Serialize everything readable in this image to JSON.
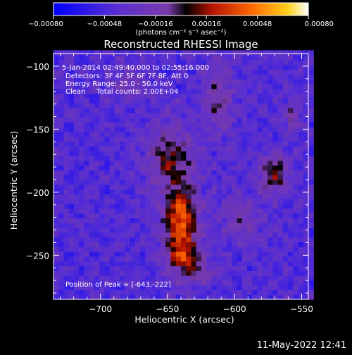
{
  "chart_data": {
    "type": "heatmap",
    "title": "Reconstructed RHESSI Image",
    "xlabel": "Heliocentric X (arcsec)",
    "ylabel": "Heliocentric Y (arcsec)",
    "xlim": [
      -735,
      -545
    ],
    "ylim": [
      -285,
      -90
    ],
    "xticks": [
      -700,
      -650,
      -600,
      -550
    ],
    "xtick_labels": [
      "−700",
      "−650",
      "−600",
      "−550"
    ],
    "yticks": [
      -250,
      -200,
      -150,
      -100
    ],
    "ytick_labels": [
      "−250",
      "−200",
      "−150",
      "−100"
    ],
    "colorbar": {
      "label": "(photons cm⁻² s⁻¹ asec⁻²)",
      "range": [
        -0.0008,
        0.0008
      ],
      "ticks": [
        -0.0008,
        -0.00048,
        -0.00016,
        0.00016,
        0.00048,
        0.0008
      ],
      "tick_labels": [
        "−0.00080",
        "−0.00048",
        "−0.00016",
        "0.00016",
        "0.00048",
        "0.00080"
      ],
      "colormap": "RHESSI blue-purple-red-yellow-white"
    },
    "annotations": [
      "5-Jan-2014 02:49:40.000 to 02:55:16.000",
      "Detectors: 3F 4F 5F 6F 7F 8F, Att 0",
      "Energy Range: 25.0 - 50.0 keV",
      "Clean     Total counts: 2.00E+04"
    ],
    "peak_label": "Position of Peak = [-643,-222]",
    "peak": {
      "x": -643,
      "y": -222
    },
    "sources": [
      {
        "x": -640,
        "y": -225,
        "sx": 9,
        "sy": 22,
        "amp": 0.00082
      },
      {
        "x": -648,
        "y": -172,
        "sx": 12,
        "sy": 17,
        "amp": 0.00044
      },
      {
        "x": -635,
        "y": -252,
        "sx": 9,
        "sy": 6,
        "amp": 0.0004
      },
      {
        "x": -570,
        "y": -185,
        "sx": 8,
        "sy": 12,
        "amp": 0.0005
      },
      {
        "x": -612,
        "y": -125,
        "sx": 8,
        "sy": 20,
        "amp": 0.00034
      },
      {
        "x": -558,
        "y": -140,
        "sx": 5,
        "sy": 8,
        "amp": 0.00032
      },
      {
        "x": -595,
        "y": -220,
        "sx": 10,
        "sy": 14,
        "amp": 0.00026
      },
      {
        "x": -680,
        "y": -113,
        "sx": 10,
        "sy": 9,
        "amp": 0.00024
      },
      {
        "x": -628,
        "y": -265,
        "sx": 11,
        "sy": 5,
        "amp": 0.00028
      }
    ],
    "background": -0.00042
  },
  "footer": {
    "date_stamp": "11-May-2022 12:41"
  }
}
